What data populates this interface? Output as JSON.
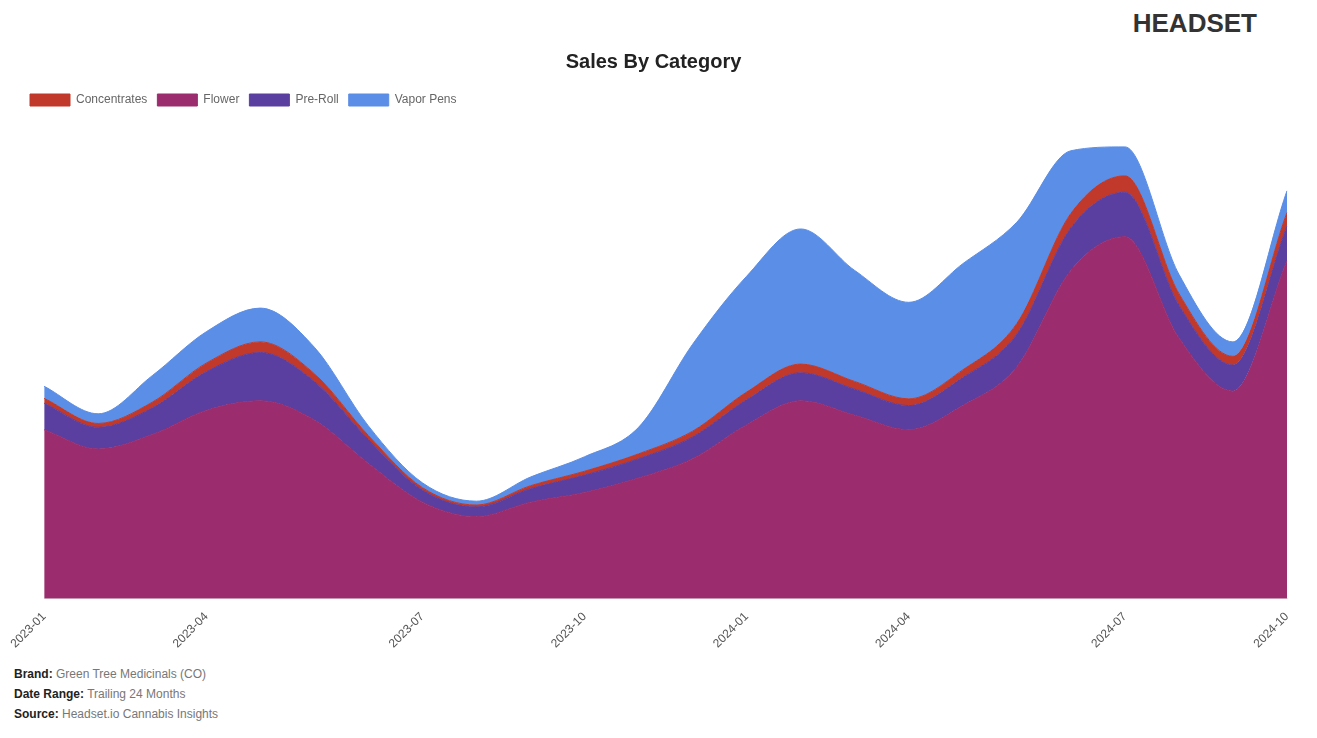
{
  "chart_data": {
    "type": "stacked_area",
    "title": "Sales By Category",
    "categories": [
      "2023-01",
      null,
      null,
      "2023-04",
      null,
      null,
      null,
      "2023-07",
      null,
      null,
      "2023-10",
      null,
      null,
      "2024-01",
      null,
      null,
      "2024-04",
      null,
      null,
      null,
      "2024-07",
      null,
      null,
      "2024-10"
    ],
    "series": [
      {
        "name": "Flower",
        "color": "#9b2d6e",
        "values": [
          350,
          310,
          340,
          390,
          410,
          370,
          280,
          200,
          170,
          200,
          220,
          250,
          290,
          360,
          410,
          380,
          350,
          400,
          480,
          680,
          750,
          540,
          430,
          700
        ]
      },
      {
        "name": "Pre-Roll",
        "color": "#5b3fa0",
        "values": [
          55,
          45,
          55,
          80,
          100,
          80,
          50,
          25,
          20,
          28,
          36,
          40,
          45,
          52,
          58,
          54,
          50,
          58,
          68,
          88,
          92,
          68,
          54,
          72
        ]
      },
      {
        "name": "Concentrates",
        "color": "#c0392b",
        "values": [
          10,
          8,
          12,
          18,
          22,
          16,
          8,
          5,
          4,
          6,
          8,
          10,
          12,
          16,
          18,
          16,
          14,
          16,
          22,
          30,
          34,
          24,
          18,
          28
        ]
      },
      {
        "name": "Vapor Pens",
        "color": "#5b8ee6",
        "values": [
          25,
          20,
          55,
          65,
          70,
          55,
          20,
          10,
          8,
          18,
          30,
          55,
          180,
          240,
          280,
          230,
          200,
          220,
          210,
          130,
          60,
          40,
          30,
          45
        ]
      }
    ],
    "ylim": [
      0,
      1000
    ],
    "stacked": true,
    "grid": false,
    "legend": "upper left",
    "tick_labels": "x",
    "annotations": [
      "HEADSET",
      "Brand: Green Tree Medicinals (CO)",
      "Date Range: Trailing 24 Months",
      "Source: Headset.io Cannabis Insights"
    ]
  }
}
